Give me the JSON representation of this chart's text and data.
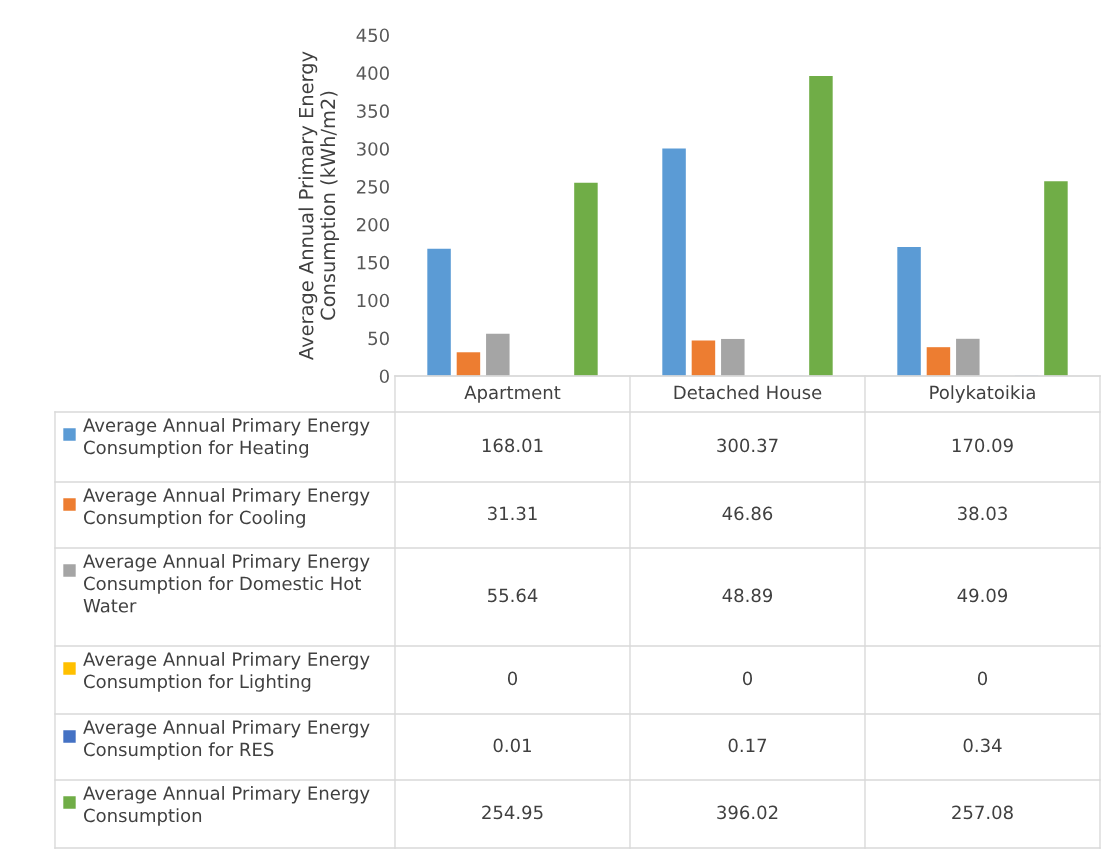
{
  "chart_data": {
    "type": "bar",
    "ylabel": "Average Annual Primary Energy\nConsumption (kWh/m2)",
    "categories": [
      "Apartment",
      "Detached House",
      "Polykatoikia"
    ],
    "series": [
      {
        "name": "Average Annual Primary Energy Consumption for Heating",
        "color": "#5b9bd5",
        "values": [
          168.01,
          300.37,
          170.09
        ]
      },
      {
        "name": "Average Annual Primary Energy Consumption for Cooling",
        "color": "#ed7d31",
        "values": [
          31.31,
          46.86,
          38.03
        ]
      },
      {
        "name": "Average Annual Primary Energy Consumption for Domestic Hot Water",
        "color": "#a5a5a5",
        "values": [
          55.64,
          48.89,
          49.09
        ]
      },
      {
        "name": "Average Annual Primary Energy Consumption for Lighting",
        "color": "#ffc000",
        "values": [
          0,
          0,
          0
        ]
      },
      {
        "name": "Average Annual Primary Energy Consumption for RES",
        "color": "#4472c4",
        "values": [
          0.01,
          0.17,
          0.34
        ]
      },
      {
        "name": "Average Annual Primary Energy Consumption",
        "color": "#70ad47",
        "values": [
          254.95,
          396.02,
          257.08
        ]
      }
    ],
    "ylim": [
      0,
      450
    ],
    "yticks": [
      0,
      50,
      100,
      150,
      200,
      250,
      300,
      350,
      400,
      450
    ],
    "grid": false,
    "legend": "bottom",
    "data_labels": true
  }
}
